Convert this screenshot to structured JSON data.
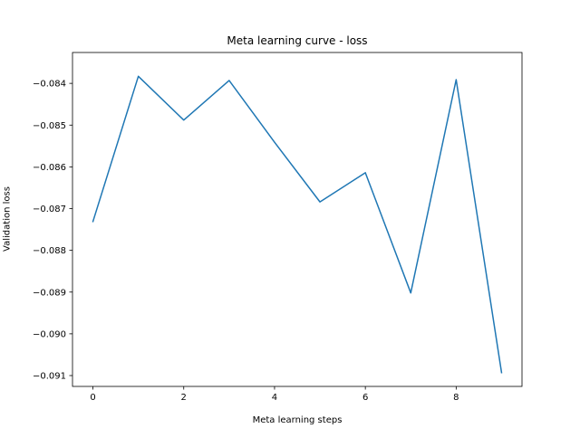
{
  "chart_data": {
    "type": "line",
    "title": "Meta learning curve - loss",
    "xlabel": "Meta learning steps",
    "ylabel": "Validation loss",
    "xlim": [
      -0.45,
      9.45
    ],
    "ylim": [
      -0.09126,
      -0.08326
    ],
    "x_ticks": [
      0,
      2,
      4,
      6,
      8
    ],
    "x_tick_labels": [
      "0",
      "2",
      "4",
      "6",
      "8"
    ],
    "y_ticks": [
      -0.084,
      -0.085,
      -0.086,
      -0.087,
      -0.088,
      -0.089,
      -0.09,
      -0.091
    ],
    "y_tick_labels": [
      "−0.084",
      "−0.085",
      "−0.086",
      "−0.087",
      "−0.088",
      "−0.089",
      "−0.090",
      "−0.091"
    ],
    "grid": false,
    "series": [
      {
        "color": "#1f77b4",
        "x": [
          0,
          1,
          2,
          3,
          4,
          5,
          6,
          7,
          8,
          9
        ],
        "y": [
          -0.08731,
          -0.08383,
          -0.08488,
          -0.08393,
          -0.08541,
          -0.08684,
          -0.08614,
          -0.08902,
          -0.08391,
          -0.09093
        ]
      }
    ]
  }
}
